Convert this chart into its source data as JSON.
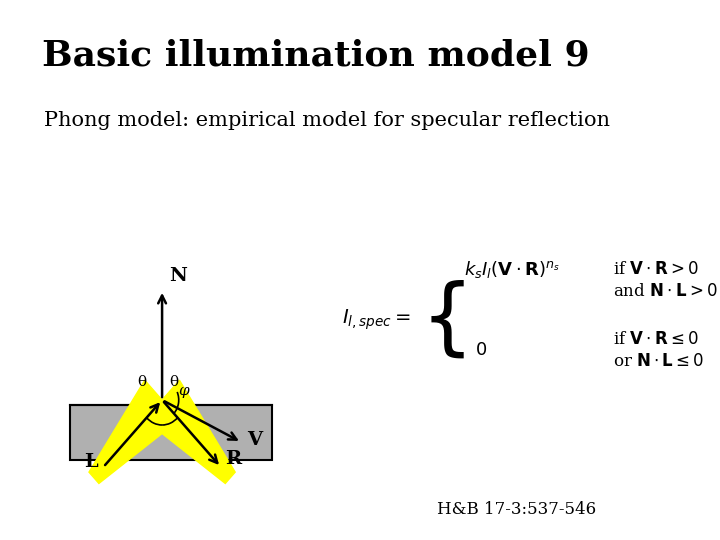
{
  "title": "Basic illumination model 9",
  "subtitle": "Phong model: empirical model for specular reflection",
  "background_color": "#ffffff",
  "title_fontsize": 26,
  "subtitle_fontsize": 15,
  "footer": "H&B 17-3:537-546",
  "surface_color": "#b0b0b0",
  "yellow_color": "#ffff00",
  "arrow_color": "#000000"
}
